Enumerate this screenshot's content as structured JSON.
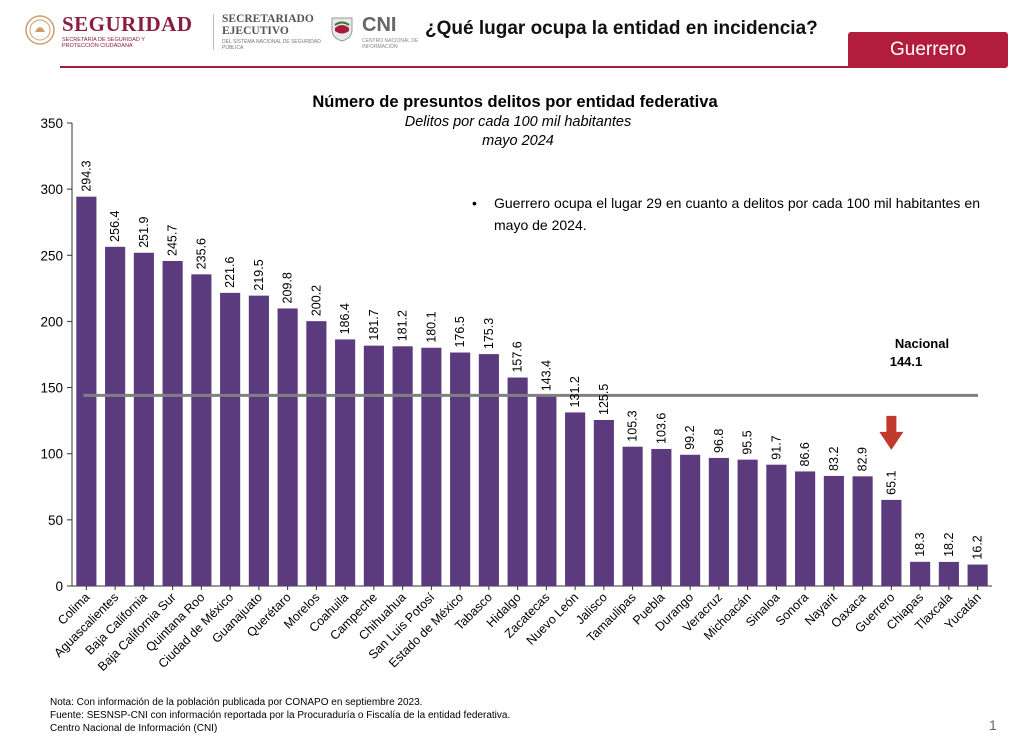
{
  "header": {
    "seguridad_logo_text": "SEGURIDAD",
    "seguridad_logo_sub": "SECRETARÍA DE SEGURIDAD Y PROTECCIÓN CIUDADANA",
    "secretariado_logo_text": "SECRETARIADO EJECUTIVO",
    "secretariado_logo_sub": "DEL SISTEMA NACIONAL DE SEGURIDAD PÚBLICA",
    "cni_logo_text": "CNI",
    "cni_logo_sub": "CENTRO NACIONAL DE INFORMACIÓN",
    "question": "¿Qué lugar ocupa la entidad en incidencia?",
    "state_tab": "Guerrero",
    "accent_color": "#a51c3d"
  },
  "chart_data": {
    "type": "bar",
    "title": "Número de presuntos delitos por entidad federativa",
    "subtitle_line1": "Delitos por cada 100 mil habitantes",
    "subtitle_line2": "mayo 2024",
    "xlabel": "",
    "ylabel": "",
    "ylim": [
      0,
      350
    ],
    "yticks": [
      0,
      50,
      100,
      150,
      200,
      250,
      300,
      350
    ],
    "categories": [
      "Colima",
      "Aguascalientes",
      "Baja California",
      "Baja California Sur",
      "Quintana Roo",
      "Ciudad de México",
      "Guanajuato",
      "Querétaro",
      "Morelos",
      "Coahuila",
      "Campeche",
      "Chihuahua",
      "San Luis Potosí",
      "Estado de México",
      "Tabasco",
      "Hidalgo",
      "Zacatecas",
      "Nuevo León",
      "Jalisco",
      "Tamaulipas",
      "Puebla",
      "Durango",
      "Veracruz",
      "Michoacán",
      "Sinaloa",
      "Sonora",
      "Nayarit",
      "Oaxaca",
      "Guerrero",
      "Chiapas",
      "Tlaxcala",
      "Yucatán"
    ],
    "values": [
      294.3,
      256.4,
      251.9,
      245.7,
      235.6,
      221.6,
      219.5,
      209.8,
      200.2,
      186.4,
      181.7,
      181.2,
      180.1,
      176.5,
      175.3,
      157.6,
      143.4,
      131.2,
      125.5,
      105.3,
      103.6,
      99.2,
      96.8,
      95.5,
      91.7,
      86.6,
      83.2,
      82.9,
      65.1,
      18.3,
      18.2,
      16.2
    ],
    "value_labels": [
      "294.3",
      "256.4",
      "251.9",
      "245.7",
      "235.6",
      "221.6",
      "219.5",
      "209.8",
      "200.2",
      "186.4",
      "181.7",
      "181.2",
      "180.1",
      "176.5",
      "175.3",
      "157.6",
      "143.4",
      "131.2",
      "125.5",
      "105.3",
      "103.6",
      "99.2",
      "96.8",
      "95.5",
      "91.7",
      "86.6",
      "83.2",
      "82.9",
      "65.1",
      "18.3",
      "18.2",
      "16.2"
    ],
    "bar_color": "#5c3a7e",
    "national": {
      "label": "Nacional",
      "value": 144.1,
      "value_text": "144.1",
      "line_color": "#808080"
    },
    "highlight": {
      "category": "Guerrero",
      "marker": "arrow-down",
      "color": "#c0392b"
    },
    "grid": false,
    "legend": "none"
  },
  "note": {
    "bullet": "•",
    "text": "Guerrero ocupa el lugar 29 en cuanto a delitos por cada 100 mil habitantes en mayo de 2024."
  },
  "footer": {
    "line1": "Nota: Con información de la población publicada por CONAPO en septiembre 2023.",
    "line2": "Fuente: SESNSP-CNI con información reportada por la Procuraduría o Fiscalía de la entidad federativa.",
    "line3": "Centro Nacional de Información (CNI)"
  },
  "page_number": "1"
}
